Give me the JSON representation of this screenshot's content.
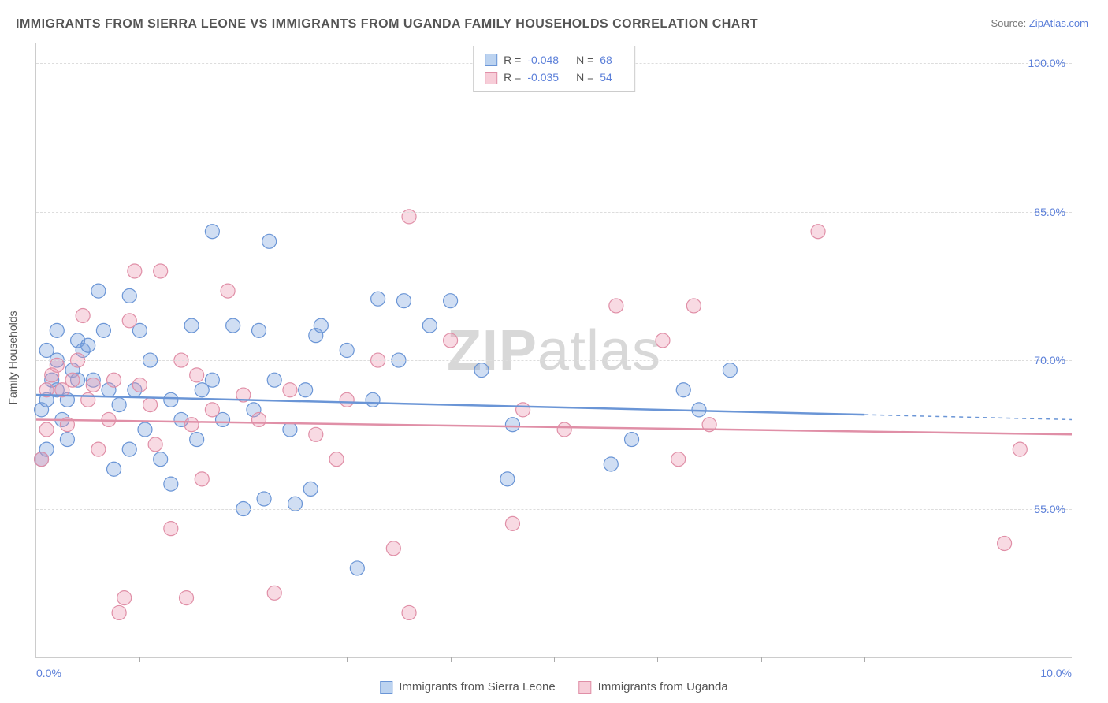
{
  "title": "IMMIGRANTS FROM SIERRA LEONE VS IMMIGRANTS FROM UGANDA FAMILY HOUSEHOLDS CORRELATION CHART",
  "source_prefix": "Source: ",
  "source_link": "ZipAtlas.com",
  "y_axis_label": "Family Households",
  "watermark_bold": "ZIP",
  "watermark_light": "atlas",
  "chart": {
    "type": "scatter",
    "xlim": [
      0,
      10
    ],
    "ylim": [
      40,
      102
    ],
    "yticks": [
      {
        "v": 55.0,
        "label": "55.0%"
      },
      {
        "v": 70.0,
        "label": "70.0%"
      },
      {
        "v": 85.0,
        "label": "85.0%"
      },
      {
        "v": 100.0,
        "label": "100.0%"
      }
    ],
    "xticks_minor": [
      1,
      2,
      3,
      4,
      5,
      6,
      7,
      8,
      9
    ],
    "xlabel_left": {
      "v": 0.0,
      "label": "0.0%"
    },
    "xlabel_right": {
      "v": 10.0,
      "label": "10.0%"
    },
    "background": "#ffffff",
    "grid_color": "#dddddd",
    "axis_color": "#cccccc",
    "tick_label_color": "#5b7fd9",
    "marker_radius": 9,
    "marker_stroke_width": 1.2,
    "regression_width": 2.5,
    "series": [
      {
        "name": "Immigrants from Sierra Leone",
        "fill": "rgba(120,160,220,0.35)",
        "stroke": "#6a95d6",
        "swatch_fill": "#bcd3f0",
        "swatch_stroke": "#6a95d6",
        "R": "-0.048",
        "N": "68",
        "regression": {
          "x1": 0,
          "y1": 66.5,
          "x2": 8.0,
          "y2": 64.5,
          "dash_to_x": 10.0,
          "dash_to_y": 64.0
        },
        "points": [
          [
            0.05,
            60
          ],
          [
            0.05,
            65
          ],
          [
            0.1,
            61
          ],
          [
            0.1,
            66
          ],
          [
            0.1,
            71
          ],
          [
            0.15,
            68
          ],
          [
            0.2,
            67
          ],
          [
            0.2,
            70
          ],
          [
            0.2,
            73
          ],
          [
            0.25,
            64
          ],
          [
            0.3,
            66
          ],
          [
            0.3,
            62
          ],
          [
            0.35,
            69
          ],
          [
            0.4,
            68
          ],
          [
            0.4,
            72
          ],
          [
            0.45,
            71
          ],
          [
            0.5,
            71.5
          ],
          [
            0.55,
            68
          ],
          [
            0.6,
            77
          ],
          [
            0.65,
            73
          ],
          [
            0.7,
            67
          ],
          [
            0.75,
            59
          ],
          [
            0.8,
            65.5
          ],
          [
            0.9,
            61
          ],
          [
            0.9,
            76.5
          ],
          [
            0.95,
            67
          ],
          [
            1.0,
            73
          ],
          [
            1.05,
            63
          ],
          [
            1.1,
            70
          ],
          [
            1.2,
            60
          ],
          [
            1.3,
            66
          ],
          [
            1.3,
            57.5
          ],
          [
            1.4,
            64
          ],
          [
            1.5,
            73.5
          ],
          [
            1.55,
            62
          ],
          [
            1.6,
            67
          ],
          [
            1.7,
            68
          ],
          [
            1.7,
            83
          ],
          [
            1.8,
            64
          ],
          [
            1.9,
            73.5
          ],
          [
            2.0,
            55
          ],
          [
            2.1,
            65
          ],
          [
            2.15,
            73
          ],
          [
            2.2,
            56
          ],
          [
            2.25,
            82
          ],
          [
            2.3,
            68
          ],
          [
            2.45,
            63
          ],
          [
            2.5,
            55.5
          ],
          [
            2.6,
            67
          ],
          [
            2.65,
            57
          ],
          [
            2.7,
            72.5
          ],
          [
            2.75,
            73.5
          ],
          [
            3.0,
            71
          ],
          [
            3.1,
            49
          ],
          [
            3.25,
            66
          ],
          [
            3.3,
            76.2
          ],
          [
            3.5,
            70
          ],
          [
            3.55,
            76
          ],
          [
            3.8,
            73.5
          ],
          [
            4.0,
            76
          ],
          [
            4.3,
            69
          ],
          [
            4.55,
            58
          ],
          [
            4.6,
            63.5
          ],
          [
            5.55,
            59.5
          ],
          [
            5.75,
            62
          ],
          [
            6.25,
            67
          ],
          [
            6.4,
            65
          ],
          [
            6.7,
            69
          ]
        ]
      },
      {
        "name": "Immigrants from Uganda",
        "fill": "rgba(235,150,175,0.35)",
        "stroke": "#e08fa7",
        "swatch_fill": "#f7cdd8",
        "swatch_stroke": "#e08fa7",
        "R": "-0.035",
        "N": "54",
        "regression": {
          "x1": 0,
          "y1": 64.0,
          "x2": 10.0,
          "y2": 62.5
        },
        "points": [
          [
            0.05,
            60
          ],
          [
            0.1,
            67
          ],
          [
            0.1,
            63
          ],
          [
            0.15,
            68.5
          ],
          [
            0.2,
            69.5
          ],
          [
            0.25,
            67
          ],
          [
            0.3,
            63.5
          ],
          [
            0.35,
            68
          ],
          [
            0.4,
            70
          ],
          [
            0.45,
            74.5
          ],
          [
            0.5,
            66
          ],
          [
            0.55,
            67.5
          ],
          [
            0.6,
            61
          ],
          [
            0.7,
            64
          ],
          [
            0.75,
            68
          ],
          [
            0.8,
            44.5
          ],
          [
            0.85,
            46
          ],
          [
            0.9,
            74
          ],
          [
            0.95,
            79
          ],
          [
            1.0,
            67.5
          ],
          [
            1.1,
            65.5
          ],
          [
            1.15,
            61.5
          ],
          [
            1.2,
            79
          ],
          [
            1.3,
            53
          ],
          [
            1.4,
            70
          ],
          [
            1.45,
            46
          ],
          [
            1.5,
            63.5
          ],
          [
            1.55,
            68.5
          ],
          [
            1.6,
            58
          ],
          [
            1.7,
            65
          ],
          [
            1.85,
            77
          ],
          [
            2.0,
            66.5
          ],
          [
            2.15,
            64
          ],
          [
            2.3,
            46.5
          ],
          [
            2.45,
            67
          ],
          [
            2.7,
            62.5
          ],
          [
            2.9,
            60
          ],
          [
            3.0,
            66
          ],
          [
            3.3,
            70
          ],
          [
            3.45,
            51
          ],
          [
            3.6,
            84.5
          ],
          [
            3.6,
            44.5
          ],
          [
            4.0,
            72
          ],
          [
            4.6,
            53.5
          ],
          [
            4.7,
            65
          ],
          [
            5.1,
            63
          ],
          [
            5.6,
            75.5
          ],
          [
            6.05,
            72
          ],
          [
            6.2,
            60
          ],
          [
            6.35,
            75.5
          ],
          [
            6.5,
            63.5
          ],
          [
            7.55,
            83
          ],
          [
            9.35,
            51.5
          ],
          [
            9.5,
            61
          ]
        ]
      }
    ]
  },
  "legend_bottom": [
    {
      "label": "Immigrants from Sierra Leone",
      "series": 0
    },
    {
      "label": "Immigrants from Uganda",
      "series": 1
    }
  ]
}
